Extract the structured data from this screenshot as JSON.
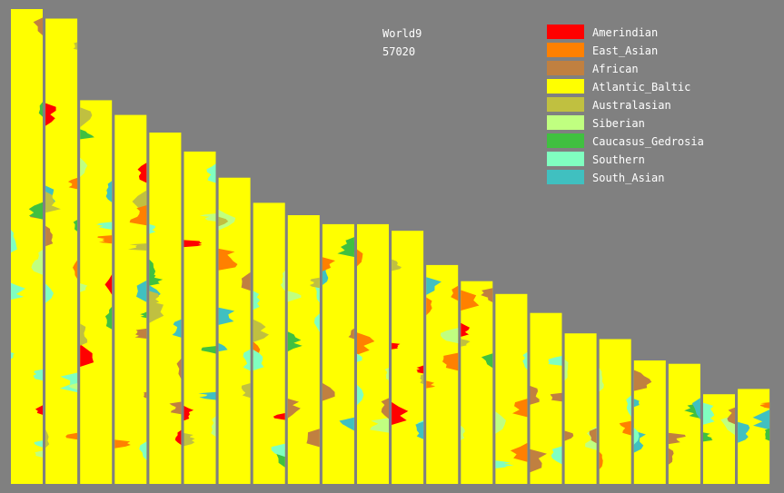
{
  "chart_data": {
    "type": "area",
    "title": "World9",
    "subtitle": "57020",
    "legend_position": "top-right",
    "background_color": "#808080",
    "components": [
      {
        "name": "Amerindian",
        "color": "#ff0000"
      },
      {
        "name": "East_Asian",
        "color": "#ff8000"
      },
      {
        "name": "African",
        "color": "#c08040"
      },
      {
        "name": "Atlantic_Baltic",
        "color": "#ffff00"
      },
      {
        "name": "Australasian",
        "color": "#c0c040"
      },
      {
        "name": "Siberian",
        "color": "#c0ff80"
      },
      {
        "name": "Caucasus_Gedrosia",
        "color": "#40c040"
      },
      {
        "name": "Southern",
        "color": "#80ffc0"
      },
      {
        "name": "South_Asian",
        "color": "#40c0c0"
      }
    ],
    "chromosomes": [
      {
        "relative_length": 1.0
      },
      {
        "relative_length": 0.98
      },
      {
        "relative_length": 0.808
      },
      {
        "relative_length": 0.777
      },
      {
        "relative_length": 0.74
      },
      {
        "relative_length": 0.7
      },
      {
        "relative_length": 0.645
      },
      {
        "relative_length": 0.592
      },
      {
        "relative_length": 0.566
      },
      {
        "relative_length": 0.547
      },
      {
        "relative_length": 0.547
      },
      {
        "relative_length": 0.533
      },
      {
        "relative_length": 0.461
      },
      {
        "relative_length": 0.427
      },
      {
        "relative_length": 0.4
      },
      {
        "relative_length": 0.36
      },
      {
        "relative_length": 0.317
      },
      {
        "relative_length": 0.305
      },
      {
        "relative_length": 0.26
      },
      {
        "relative_length": 0.253
      },
      {
        "relative_length": 0.189
      },
      {
        "relative_length": 0.2
      }
    ]
  }
}
